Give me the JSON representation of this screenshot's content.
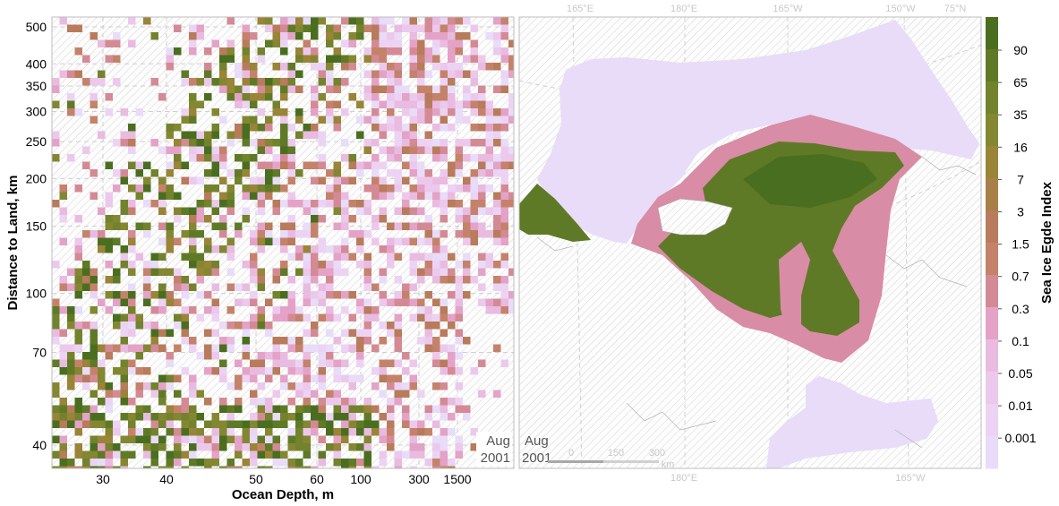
{
  "stamps": {
    "left": [
      "Aug",
      "2001"
    ],
    "right": [
      "Aug",
      "2001"
    ]
  },
  "scalebar": [
    "0",
    "150",
    "300",
    "km"
  ],
  "map_labels": {
    "top": [
      "165°E",
      "180°E",
      "165°W",
      "150°W",
      "75°N"
    ],
    "bottom": [
      "180°E",
      "165°W"
    ]
  },
  "chart_data": [
    {
      "type": "heatmap",
      "xlabel": "Ocean Depth, m",
      "ylabel": "Distance to Land, km",
      "x_ticks": [
        "30",
        "40",
        "50",
        "60",
        "100",
        "300",
        "1500"
      ],
      "y_ticks": [
        "40",
        "70",
        "100",
        "150",
        "200",
        "250",
        "300",
        "350",
        "400",
        "500"
      ],
      "grid": true,
      "x_scale": "log",
      "y_scale": "log",
      "value_legend": "Sea Ice Egde Index"
    },
    {
      "type": "heatmap",
      "description": "map",
      "grid": true,
      "colorbar": {
        "title": "Sea Ice Egde Index",
        "ticks": [
          "90",
          "65",
          "35",
          "16",
          "7",
          "3",
          "1.5",
          "0.7",
          "0.3",
          "0.1",
          "0.05",
          "0.01",
          "0.001"
        ],
        "colors": [
          "#4a6e1f",
          "#5f7a26",
          "#73822c",
          "#848731",
          "#998438",
          "#a97f48",
          "#b87b5b",
          "#c5826b",
          "#d48a95",
          "#e4a2c7",
          "#e9bbe0",
          "#ecc9ec",
          "#ecd3f3",
          "#e8dcf8"
        ]
      }
    }
  ]
}
